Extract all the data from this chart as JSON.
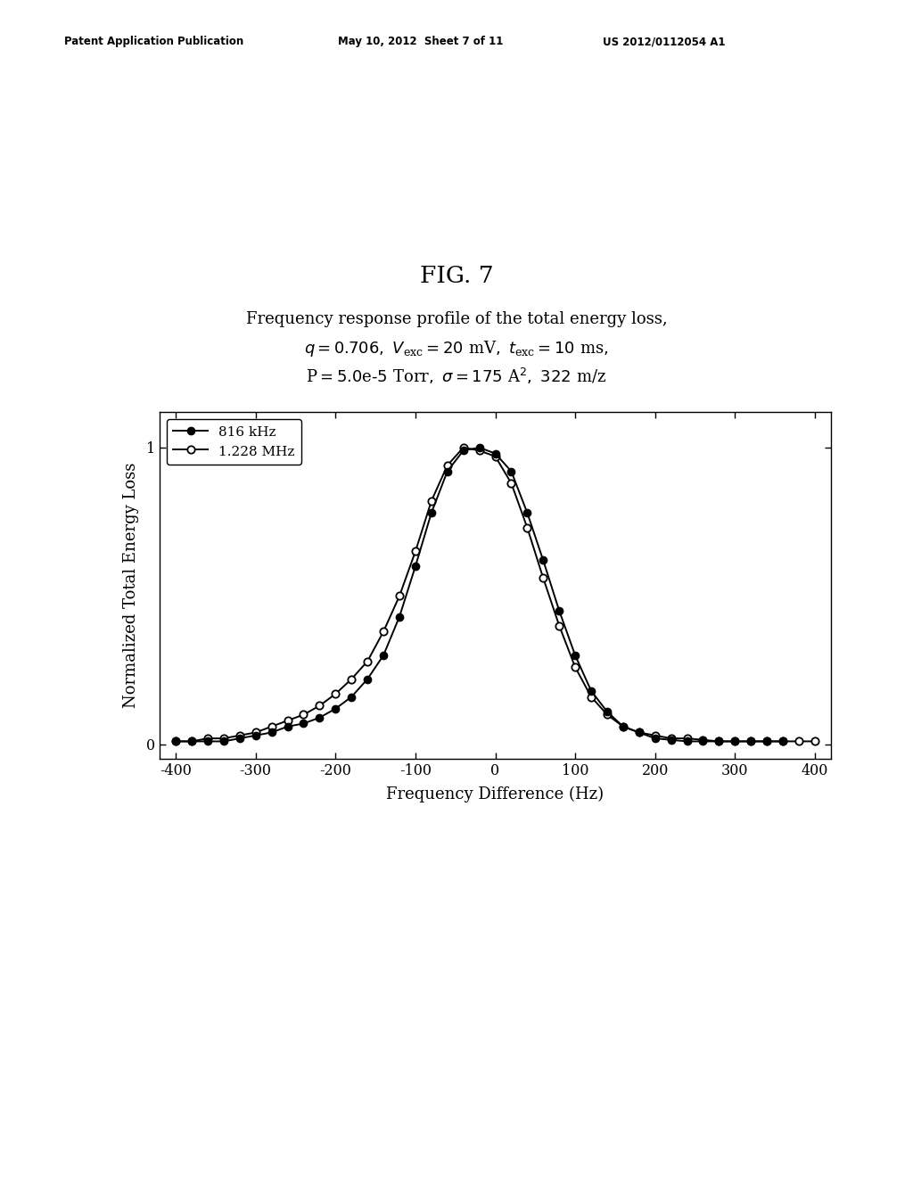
{
  "fig_label": "FIG. 7",
  "title_line1": "Frequency response profile of the total energy loss,",
  "xlabel": "Frequency Difference (Hz)",
  "ylabel": "Normalized Total Energy Loss",
  "xlim": [
    -420,
    420
  ],
  "ylim": [
    -0.05,
    1.12
  ],
  "xticks": [
    -400,
    -300,
    -200,
    -100,
    0,
    100,
    200,
    300,
    400
  ],
  "yticks": [
    0,
    1
  ],
  "series1_label": "816 kHz",
  "series2_label": "1.228 MHz",
  "series1_x": [
    -400,
    -380,
    -360,
    -340,
    -320,
    -300,
    -280,
    -260,
    -240,
    -220,
    -200,
    -180,
    -160,
    -140,
    -120,
    -100,
    -80,
    -60,
    -40,
    -20,
    0,
    20,
    40,
    60,
    80,
    100,
    120,
    140,
    160,
    180,
    200,
    220,
    240,
    260,
    280,
    300,
    320,
    340,
    360
  ],
  "series1_y": [
    0.01,
    0.01,
    0.01,
    0.01,
    0.02,
    0.03,
    0.04,
    0.06,
    0.07,
    0.09,
    0.12,
    0.16,
    0.22,
    0.3,
    0.43,
    0.6,
    0.78,
    0.92,
    0.99,
    1.0,
    0.98,
    0.92,
    0.78,
    0.62,
    0.45,
    0.3,
    0.18,
    0.11,
    0.06,
    0.04,
    0.02,
    0.015,
    0.01,
    0.01,
    0.01,
    0.01,
    0.01,
    0.01,
    0.01
  ],
  "series2_x": [
    -400,
    -380,
    -360,
    -340,
    -320,
    -300,
    -280,
    -260,
    -240,
    -220,
    -200,
    -180,
    -160,
    -140,
    -120,
    -100,
    -80,
    -60,
    -40,
    -20,
    0,
    20,
    40,
    60,
    80,
    100,
    120,
    140,
    160,
    180,
    200,
    220,
    240,
    260,
    280,
    300,
    320,
    340,
    360,
    380,
    400
  ],
  "series2_y": [
    0.01,
    0.01,
    0.02,
    0.02,
    0.03,
    0.04,
    0.06,
    0.08,
    0.1,
    0.13,
    0.17,
    0.22,
    0.28,
    0.38,
    0.5,
    0.65,
    0.82,
    0.94,
    1.0,
    0.99,
    0.97,
    0.88,
    0.73,
    0.56,
    0.4,
    0.26,
    0.16,
    0.1,
    0.06,
    0.04,
    0.03,
    0.02,
    0.02,
    0.015,
    0.01,
    0.01,
    0.01,
    0.01,
    0.01,
    0.01,
    0.01
  ]
}
